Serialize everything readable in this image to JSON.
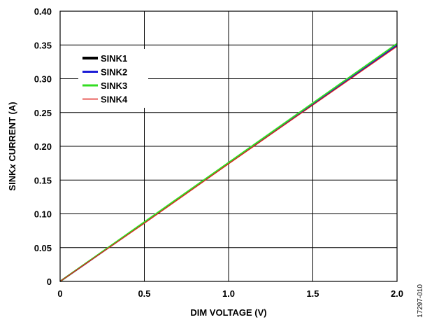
{
  "chart_data": {
    "type": "line",
    "xlabel": "DIM VOLTAGE (V)",
    "ylabel_parts": [
      "SINK",
      "x",
      " CURRENT (A)"
    ],
    "xlim": [
      0,
      2.0
    ],
    "ylim": [
      0,
      0.4
    ],
    "x_ticks": [
      "0",
      "0.5",
      "1.0",
      "1.5",
      "2.0"
    ],
    "x_tick_values": [
      0,
      0.5,
      1.0,
      1.5,
      2.0
    ],
    "y_ticks": [
      "0",
      "0.05",
      "0.10",
      "0.15",
      "0.20",
      "0.25",
      "0.30",
      "0.35",
      "0.40"
    ],
    "y_tick_values": [
      0,
      0.05,
      0.1,
      0.15,
      0.2,
      0.25,
      0.3,
      0.35,
      0.4
    ],
    "grid": true,
    "legend_position": "top-left",
    "series": [
      {
        "name": "SINK1",
        "color": "#000000",
        "legend_width": 4,
        "x": [
          0,
          0.5,
          1.0,
          1.5,
          2.0
        ],
        "values": [
          0,
          0.087,
          0.175,
          0.262,
          0.349
        ]
      },
      {
        "name": "SINK2",
        "color": "#1c1cd6",
        "legend_width": 3,
        "x": [
          0,
          0.5,
          1.0,
          1.5,
          2.0
        ],
        "values": [
          0,
          0.087,
          0.175,
          0.263,
          0.35
        ]
      },
      {
        "name": "SINK3",
        "color": "#33dd22",
        "legend_width": 3,
        "x": [
          0,
          0.5,
          1.0,
          1.5,
          2.0
        ],
        "values": [
          0,
          0.088,
          0.176,
          0.264,
          0.352
        ]
      },
      {
        "name": "SINK4",
        "color": "#e0201a",
        "legend_width": 1.5,
        "x": [
          0,
          0.5,
          1.0,
          1.5,
          2.0
        ],
        "values": [
          0,
          0.086,
          0.174,
          0.261,
          0.348
        ]
      }
    ]
  },
  "figure_id": "17297-010"
}
